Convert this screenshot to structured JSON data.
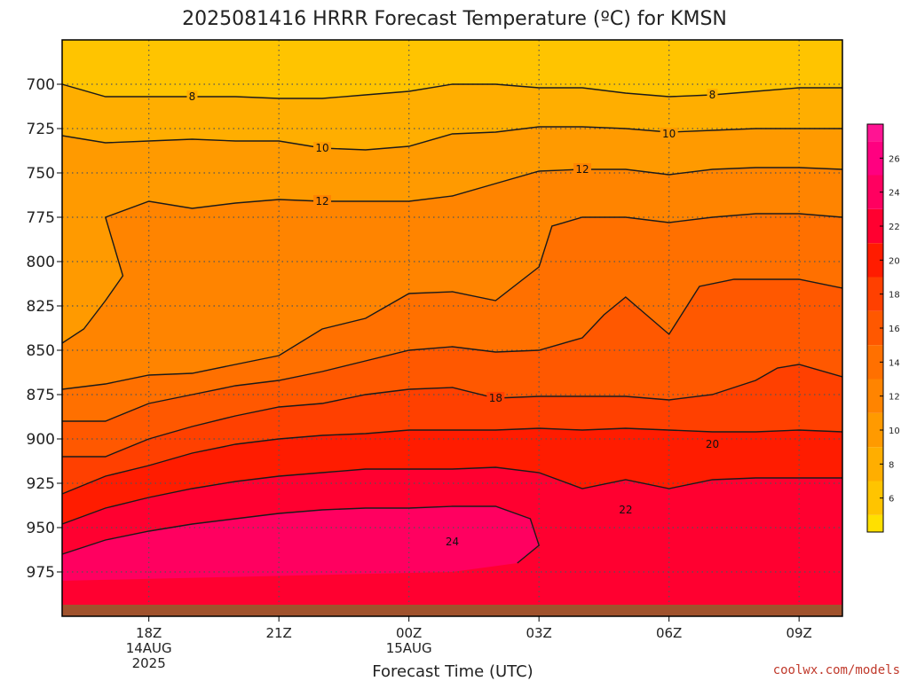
{
  "chart_data": {
    "type": "heatmap",
    "title": "2025081416 HRRR Forecast Temperature (ºC) for KMSN",
    "xlabel": "Forecast Time (UTC)",
    "ylabel": "",
    "x_ticks": [
      {
        "time": "18Z",
        "date": "14AUG",
        "year": "2025"
      },
      {
        "time": "21Z",
        "date": "",
        "year": ""
      },
      {
        "time": "00Z",
        "date": "15AUG",
        "year": ""
      },
      {
        "time": "03Z",
        "date": "",
        "year": ""
      },
      {
        "time": "06Z",
        "date": "",
        "year": ""
      },
      {
        "time": "09Z",
        "date": "",
        "year": ""
      }
    ],
    "y_ticks": [
      "700",
      "725",
      "750",
      "775",
      "800",
      "825",
      "850",
      "875",
      "900",
      "925",
      "950",
      "975"
    ],
    "ylim": [
      1000,
      675
    ],
    "xlim": [
      "2025-08-14 16Z",
      "2025-08-15 10Z"
    ],
    "grid": true,
    "colorbar": {
      "ticks": [
        "6",
        "8",
        "10",
        "12",
        "14",
        "16",
        "18",
        "20",
        "22",
        "24",
        "26"
      ],
      "range": [
        4,
        28
      ],
      "step": 2,
      "colors": [
        "#ffe000",
        "#ffc400",
        "#ffae00",
        "#ff9a00",
        "#ff8400",
        "#ff7000",
        "#ff5800",
        "#ff4000",
        "#ff1c00",
        "#ff0030",
        "#ff0060",
        "#ff0080",
        "#ff1493"
      ]
    },
    "band_colors": [
      "#ffc400",
      "#ffae00",
      "#ff9a00",
      "#ff8400",
      "#ff7000",
      "#ff5800",
      "#ff4000",
      "#ff1c00",
      "#ff0030",
      "#ff0060",
      "#ff0080"
    ],
    "ground_color": "#a0522d",
    "contour_labels": [
      {
        "value": "8",
        "hour": 19.0,
        "p": 707
      },
      {
        "value": "8",
        "hour": 7.0,
        "p": 706
      },
      {
        "value": "10",
        "hour": 22.0,
        "p": 736
      },
      {
        "value": "10",
        "hour": 6.0,
        "p": 728
      },
      {
        "value": "12",
        "hour": 22.0,
        "p": 766
      },
      {
        "value": "12",
        "hour": 4.0,
        "p": 748
      },
      {
        "value": "18",
        "hour": 2.0,
        "p": 877
      },
      {
        "value": "20",
        "hour": 7.0,
        "p": 903
      },
      {
        "value": "22",
        "hour": 5.0,
        "p": 940
      },
      {
        "value": "24",
        "hour": 1.0,
        "p": 958
      }
    ],
    "contours": [
      {
        "level": 8,
        "points": [
          [
            16.0,
            700
          ],
          [
            17.0,
            707
          ],
          [
            18.0,
            707
          ],
          [
            19.0,
            707
          ],
          [
            20.0,
            707
          ],
          [
            21.0,
            708
          ],
          [
            22.0,
            708
          ],
          [
            23.0,
            706
          ],
          [
            0.0,
            704
          ],
          [
            1.0,
            700
          ],
          [
            2.0,
            700
          ],
          [
            3.0,
            702
          ],
          [
            4.0,
            702
          ],
          [
            5.0,
            705
          ],
          [
            6.0,
            707
          ],
          [
            7.0,
            706
          ],
          [
            8.0,
            704
          ],
          [
            9.0,
            702
          ],
          [
            10.0,
            702
          ]
        ]
      },
      {
        "level": 10,
        "points": [
          [
            16.0,
            729
          ],
          [
            17.0,
            733
          ],
          [
            18.0,
            732
          ],
          [
            19.0,
            731
          ],
          [
            20.0,
            732
          ],
          [
            21.0,
            732
          ],
          [
            22.0,
            736
          ],
          [
            23.0,
            737
          ],
          [
            0.0,
            735
          ],
          [
            1.0,
            728
          ],
          [
            2.0,
            727
          ],
          [
            3.0,
            724
          ],
          [
            4.0,
            724
          ],
          [
            5.0,
            725
          ],
          [
            6.0,
            727
          ],
          [
            7.0,
            726
          ],
          [
            8.0,
            725
          ],
          [
            9.0,
            725
          ],
          [
            10.0,
            725
          ]
        ]
      },
      {
        "level": 12,
        "points": [
          [
            16.0,
            846
          ],
          [
            16.5,
            838
          ],
          [
            17.0,
            822
          ],
          [
            17.4,
            808
          ],
          [
            17.0,
            775
          ],
          [
            18.0,
            766
          ],
          [
            19.0,
            770
          ],
          [
            20.0,
            767
          ],
          [
            21.0,
            765
          ],
          [
            22.0,
            766
          ],
          [
            23.0,
            766
          ],
          [
            0.0,
            766
          ],
          [
            1.0,
            763
          ],
          [
            2.0,
            756
          ],
          [
            3.0,
            749
          ],
          [
            4.0,
            748
          ],
          [
            5.0,
            748
          ],
          [
            6.0,
            751
          ],
          [
            7.0,
            748
          ],
          [
            8.0,
            747
          ],
          [
            9.0,
            747
          ],
          [
            10.0,
            748
          ]
        ]
      },
      {
        "level": 14,
        "points": [
          [
            16.0,
            872
          ],
          [
            17.0,
            869
          ],
          [
            18.0,
            864
          ],
          [
            19.0,
            863
          ],
          [
            20.0,
            858
          ],
          [
            21.0,
            853
          ],
          [
            22.0,
            838
          ],
          [
            23.0,
            832
          ],
          [
            0.0,
            818
          ],
          [
            1.0,
            817
          ],
          [
            2.0,
            822
          ],
          [
            3.0,
            803
          ],
          [
            3.3,
            780
          ],
          [
            4.0,
            775
          ],
          [
            5.0,
            775
          ],
          [
            6.0,
            778
          ],
          [
            7.0,
            775
          ],
          [
            8.0,
            773
          ],
          [
            9.0,
            773
          ],
          [
            10.0,
            775
          ]
        ]
      },
      {
        "level": 16,
        "points": [
          [
            16.0,
            890
          ],
          [
            17.0,
            890
          ],
          [
            18.0,
            880
          ],
          [
            19.0,
            875
          ],
          [
            20.0,
            870
          ],
          [
            21.0,
            867
          ],
          [
            22.0,
            862
          ],
          [
            23.0,
            856
          ],
          [
            0.0,
            850
          ],
          [
            1.0,
            848
          ],
          [
            2.0,
            851
          ],
          [
            3.0,
            850
          ],
          [
            4.0,
            843
          ],
          [
            4.5,
            830
          ],
          [
            5.0,
            820
          ],
          [
            6.0,
            841
          ],
          [
            6.7,
            814
          ],
          [
            7.5,
            810
          ],
          [
            8.0,
            810
          ],
          [
            9.0,
            810
          ],
          [
            10.0,
            815
          ]
        ]
      },
      {
        "level": 18,
        "points": [
          [
            16.0,
            910
          ],
          [
            17.0,
            910
          ],
          [
            18.0,
            900
          ],
          [
            19.0,
            893
          ],
          [
            20.0,
            887
          ],
          [
            21.0,
            882
          ],
          [
            22.0,
            880
          ],
          [
            23.0,
            875
          ],
          [
            0.0,
            872
          ],
          [
            1.0,
            871
          ],
          [
            2.0,
            877
          ],
          [
            3.0,
            876
          ],
          [
            4.0,
            876
          ],
          [
            5.0,
            876
          ],
          [
            6.0,
            878
          ],
          [
            7.0,
            875
          ],
          [
            8.0,
            867
          ],
          [
            8.5,
            860
          ],
          [
            9.0,
            858
          ],
          [
            10.0,
            865
          ]
        ]
      },
      {
        "level": 20,
        "points": [
          [
            16.0,
            931
          ],
          [
            17.0,
            921
          ],
          [
            18.0,
            915
          ],
          [
            19.0,
            908
          ],
          [
            20.0,
            903
          ],
          [
            21.0,
            900
          ],
          [
            22.0,
            898
          ],
          [
            23.0,
            897
          ],
          [
            0.0,
            895
          ],
          [
            1.0,
            895
          ],
          [
            2.0,
            895
          ],
          [
            3.0,
            894
          ],
          [
            4.0,
            895
          ],
          [
            5.0,
            894
          ],
          [
            6.0,
            895
          ],
          [
            7.0,
            896
          ],
          [
            8.0,
            896
          ],
          [
            9.0,
            895
          ],
          [
            10.0,
            896
          ]
        ]
      },
      {
        "level": 22,
        "points": [
          [
            16.0,
            948
          ],
          [
            17.0,
            939
          ],
          [
            18.0,
            933
          ],
          [
            19.0,
            928
          ],
          [
            20.0,
            924
          ],
          [
            21.0,
            921
          ],
          [
            22.0,
            919
          ],
          [
            23.0,
            917
          ],
          [
            0.0,
            917
          ],
          [
            1.0,
            917
          ],
          [
            2.0,
            916
          ],
          [
            3.0,
            919
          ],
          [
            4.0,
            928
          ],
          [
            5.0,
            923
          ],
          [
            6.0,
            928
          ],
          [
            7.0,
            923
          ],
          [
            8.0,
            922
          ],
          [
            9.0,
            922
          ],
          [
            10.0,
            922
          ]
        ]
      },
      {
        "level": 24,
        "points": [
          [
            16.0,
            965
          ],
          [
            17.0,
            957
          ],
          [
            18.0,
            952
          ],
          [
            19.0,
            948
          ],
          [
            20.0,
            945
          ],
          [
            21.0,
            942
          ],
          [
            22.0,
            940
          ],
          [
            23.0,
            939
          ],
          [
            0.0,
            939
          ],
          [
            1.0,
            938
          ],
          [
            2.0,
            938
          ],
          [
            2.8,
            945
          ],
          [
            3.0,
            960
          ],
          [
            2.5,
            970
          ]
        ]
      }
    ]
  },
  "credit": "coolwx.com/models"
}
